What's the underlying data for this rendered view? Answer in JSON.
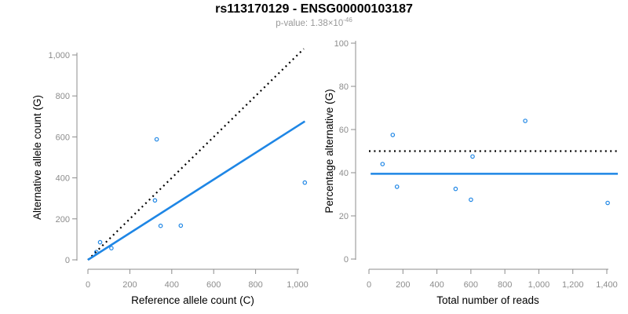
{
  "header": {
    "title": "rs113170129 - ENSG00000103187",
    "subtitle_prefix": "p-value: 1.38×10",
    "subtitle_exponent": "-46"
  },
  "colors": {
    "accent_blue": "#1e86e5",
    "line_black": "#000000",
    "axis_gray": "#8c8c8c",
    "tick_label_gray": "#8c8c8c",
    "subtitle_gray": "#999999"
  },
  "chart_data": [
    {
      "type": "scatter",
      "name": "allele-counts-plot",
      "xlabel": "Reference allele count (C)",
      "ylabel": "Alternative allele count (G)",
      "xlim": [
        0,
        1050
      ],
      "ylim": [
        0,
        1050
      ],
      "grid": false,
      "legend": false,
      "xticks": [
        0,
        200,
        400,
        600,
        800,
        1000
      ],
      "xtick_labels": [
        "0",
        "200",
        "400",
        "600",
        "800",
        "1,000"
      ],
      "yticks": [
        0,
        200,
        400,
        600,
        800,
        1000
      ],
      "ytick_labels": [
        "0",
        "200",
        "400",
        "600",
        "800",
        "1,000"
      ],
      "point_color": "#1e86e5",
      "points": [
        [
          40,
          38
        ],
        [
          58,
          86
        ],
        [
          112,
          57
        ],
        [
          320,
          290
        ],
        [
          328,
          588
        ],
        [
          347,
          166
        ],
        [
          443,
          167
        ],
        [
          1035,
          377
        ]
      ],
      "lines": [
        {
          "name": "identity-line",
          "style": "dotted",
          "color": "#000000",
          "width": 2.2,
          "from": [
            0,
            0
          ],
          "to": [
            1030,
            1030
          ]
        },
        {
          "name": "regression-line",
          "style": "solid",
          "color": "#1e86e5",
          "width": 2.6,
          "from": [
            0,
            0
          ],
          "to": [
            1035,
            676
          ]
        }
      ]
    },
    {
      "type": "scatter",
      "name": "percentage-alternative-plot",
      "xlabel": "Total number of reads",
      "ylabel": "Percentage alternative (G)",
      "xlim": [
        0,
        1460
      ],
      "ylim": [
        0,
        100
      ],
      "grid": false,
      "legend": false,
      "xticks": [
        0,
        200,
        400,
        600,
        800,
        1000,
        1200,
        1400
      ],
      "xtick_labels": [
        "0",
        "200",
        "400",
        "600",
        "800",
        "1,000",
        "1,200",
        "1,400"
      ],
      "yticks": [
        0,
        20,
        40,
        60,
        80,
        100
      ],
      "ytick_labels": [
        "0",
        "20",
        "40",
        "60",
        "80",
        "100"
      ],
      "point_color": "#1e86e5",
      "points": [
        [
          80,
          44
        ],
        [
          140,
          57.5
        ],
        [
          165,
          33.5
        ],
        [
          510,
          32.5
        ],
        [
          600,
          27.5
        ],
        [
          610,
          47.5
        ],
        [
          920,
          64
        ],
        [
          1405,
          26
        ]
      ],
      "lines": [
        {
          "name": "fifty-percent-line",
          "style": "dotted",
          "color": "#000000",
          "width": 2.3,
          "from": [
            0,
            50
          ],
          "to": [
            1465,
            50
          ]
        },
        {
          "name": "mean-percentage-line",
          "style": "solid",
          "color": "#1e86e5",
          "width": 2.6,
          "from": [
            10,
            39.5
          ],
          "to": [
            1465,
            39.5
          ]
        }
      ]
    }
  ]
}
